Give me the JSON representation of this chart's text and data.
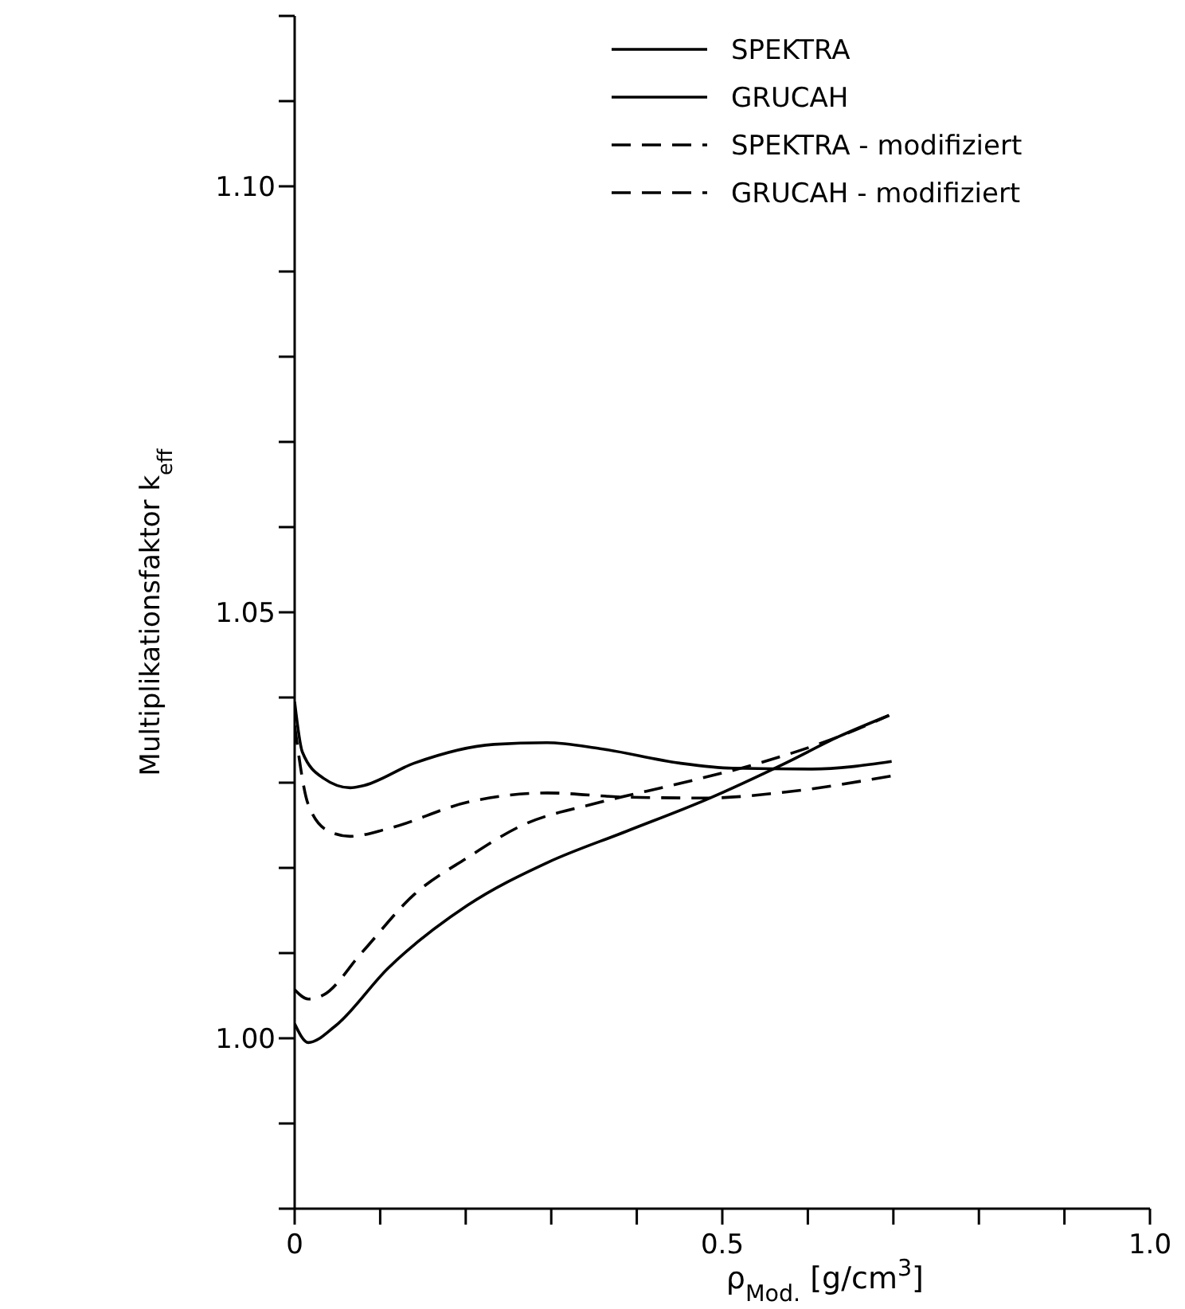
{
  "chart_data": {
    "type": "line",
    "xlabel": "ρ$_{Mod.}$ [g/cm$^{3}$]",
    "ylabel": "Multiplikationsfaktor  k$_{eff}$",
    "xlim": [
      0,
      1
    ],
    "xticks": [
      0,
      {
        "value": 0.1,
        "label": null
      },
      {
        "value": 0.2,
        "label": null
      },
      {
        "value": 0.3,
        "label": null
      },
      {
        "value": 0.4,
        "label": null
      },
      0.5,
      {
        "value": 0.6,
        "label": null
      },
      {
        "value": 0.7,
        "label": null
      },
      {
        "value": 0.8,
        "label": null
      },
      {
        "value": 0.9,
        "label": null
      },
      {
        "value": 1,
        "label": "1.0"
      }
    ],
    "ylim": [
      0.98,
      1.12
    ],
    "yticks": [
      {
        "value": 0.98,
        "label": null
      },
      {
        "value": 0.99,
        "label": null
      },
      {
        "value": 1,
        "label": "1.00"
      },
      {
        "value": 1.01,
        "label": null
      },
      {
        "value": 1.02,
        "label": null
      },
      {
        "value": 1.03,
        "label": null
      },
      {
        "value": 1.04,
        "label": null
      },
      1.05,
      {
        "value": 1.06,
        "label": null
      },
      {
        "value": 1.07,
        "label": null
      },
      {
        "value": 1.08,
        "label": null
      },
      {
        "value": 1.09,
        "label": null
      },
      {
        "value": 1.1,
        "label": "1.10"
      },
      {
        "value": 1.11,
        "label": null
      },
      {
        "value": 1.12,
        "label": null
      }
    ],
    "grid": false,
    "legend": "top right",
    "marker": "none",
    "series": [
      {
        "name": "SPEKTRA",
        "color": "#000000",
        "line_style": "solid",
        "x": [
          0,
          0.016,
          0.047,
          0.109,
          0.202,
          0.295,
          0.388,
          0.481,
          0.574,
          0.636,
          0.695
        ],
        "values": [
          1.0017,
          0.9995,
          1.0014,
          1.0082,
          1.0156,
          1.0206,
          1.0243,
          1.028,
          1.0323,
          1.0354,
          1.0379
        ]
      },
      {
        "name": "GRUCAH",
        "color": "#000000",
        "line_style": "solid",
        "x": [
          0,
          0.009,
          0.034,
          0.065,
          0.078,
          0.14,
          0.233,
          0.295,
          0.357,
          0.45,
          0.512,
          0.605,
          0.698
        ],
        "values": [
          1.0395,
          1.0336,
          1.0305,
          1.0294,
          1.0296,
          1.0323,
          1.0345,
          1.0347,
          1.034,
          1.0323,
          1.0317,
          1.0316,
          1.0325
        ]
      },
      {
        "name": "SPEKTRA - modifiziert",
        "color": "#000000",
        "line_style": "dashed",
        "x": [
          0,
          0.016,
          0.034,
          0.078,
          0.14,
          0.202,
          0.264,
          0.357,
          0.45,
          0.543,
          0.636,
          0.695
        ],
        "values": [
          1.0057,
          1.0046,
          1.0051,
          1.01,
          1.0169,
          1.0212,
          1.0249,
          1.0277,
          1.0299,
          1.0323,
          1.0354,
          1.0379
        ]
      },
      {
        "name": "GRUCAH - modifiziert",
        "color": "#000000",
        "line_style": "dashed",
        "x": [
          0,
          0.016,
          0.04,
          0.065,
          0.109,
          0.202,
          0.295,
          0.388,
          0.481,
          0.574,
          0.698
        ],
        "values": [
          1.0367,
          1.0274,
          1.0243,
          1.0237,
          1.0246,
          1.0277,
          1.0288,
          1.0283,
          1.0282,
          1.0289,
          1.0308
        ]
      }
    ]
  }
}
